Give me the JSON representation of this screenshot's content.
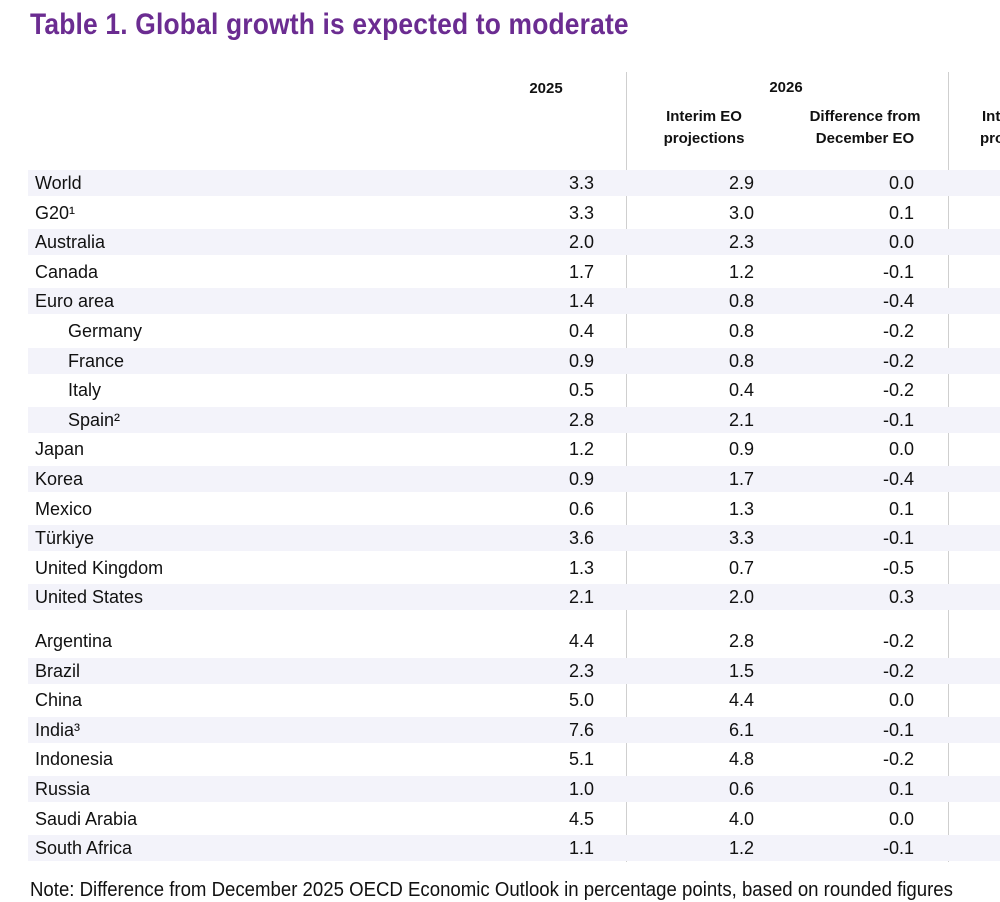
{
  "title": "Table  1. Global growth is expected to moderate",
  "colors": {
    "title": "#6b2c91",
    "band": "#f3f3fa",
    "rule": "#cfcfcf"
  },
  "header": {
    "col_2025": "2025",
    "col_2026": "2026",
    "col_interim_1": "Interim EO",
    "col_interim_2": "projections",
    "col_diff_1": "Difference from",
    "col_diff_2": "December EO",
    "col_next_1": "Int",
    "col_next_2": "pro"
  },
  "rows": [
    {
      "label": "World",
      "y2025": "3.3",
      "interim": "2.9",
      "diff": "0.0",
      "indent": false
    },
    {
      "label": "G20¹",
      "y2025": "3.3",
      "interim": "3.0",
      "diff": "0.1",
      "indent": false
    },
    {
      "label": "Australia",
      "y2025": "2.0",
      "interim": "2.3",
      "diff": "0.0",
      "indent": false
    },
    {
      "label": "Canada",
      "y2025": "1.7",
      "interim": "1.2",
      "diff": "-0.1",
      "indent": false
    },
    {
      "label": "Euro area",
      "y2025": "1.4",
      "interim": "0.8",
      "diff": "-0.4",
      "indent": false
    },
    {
      "label": "Germany",
      "y2025": "0.4",
      "interim": "0.8",
      "diff": "-0.2",
      "indent": true
    },
    {
      "label": "France",
      "y2025": "0.9",
      "interim": "0.8",
      "diff": "-0.2",
      "indent": true
    },
    {
      "label": "Italy",
      "y2025": "0.5",
      "interim": "0.4",
      "diff": "-0.2",
      "indent": true
    },
    {
      "label": "Spain²",
      "y2025": "2.8",
      "interim": "2.1",
      "diff": "-0.1",
      "indent": true
    },
    {
      "label": "Japan",
      "y2025": "1.2",
      "interim": "0.9",
      "diff": "0.0",
      "indent": false
    },
    {
      "label": "Korea",
      "y2025": "0.9",
      "interim": "1.7",
      "diff": "-0.4",
      "indent": false
    },
    {
      "label": "Mexico",
      "y2025": "0.6",
      "interim": "1.3",
      "diff": "0.1",
      "indent": false
    },
    {
      "label": "Türkiye",
      "y2025": "3.6",
      "interim": "3.3",
      "diff": "-0.1",
      "indent": false
    },
    {
      "label": "United Kingdom",
      "y2025": "1.3",
      "interim": "0.7",
      "diff": "-0.5",
      "indent": false
    },
    {
      "label": "United States",
      "y2025": "2.1",
      "interim": "2.0",
      "diff": "0.3",
      "indent": false
    },
    {
      "label": "Argentina",
      "y2025": "4.4",
      "interim": "2.8",
      "diff": "-0.2",
      "indent": false
    },
    {
      "label": "Brazil",
      "y2025": "2.3",
      "interim": "1.5",
      "diff": "-0.2",
      "indent": false
    },
    {
      "label": "China",
      "y2025": "5.0",
      "interim": "4.4",
      "diff": "0.0",
      "indent": false
    },
    {
      "label": "India³",
      "y2025": "7.6",
      "interim": "6.1",
      "diff": "-0.1",
      "indent": false
    },
    {
      "label": "Indonesia",
      "y2025": "5.1",
      "interim": "4.8",
      "diff": "-0.2",
      "indent": false
    },
    {
      "label": "Russia",
      "y2025": "1.0",
      "interim": "0.6",
      "diff": "0.1",
      "indent": false
    },
    {
      "label": "Saudi Arabia",
      "y2025": "4.5",
      "interim": "4.0",
      "diff": "0.0",
      "indent": false
    },
    {
      "label": "South Africa",
      "y2025": "1.1",
      "interim": "1.2",
      "diff": "-0.1",
      "indent": false
    }
  ],
  "note": "Note: Difference from December 2025 OECD Economic Outlook in percentage points, based on rounded figures"
}
